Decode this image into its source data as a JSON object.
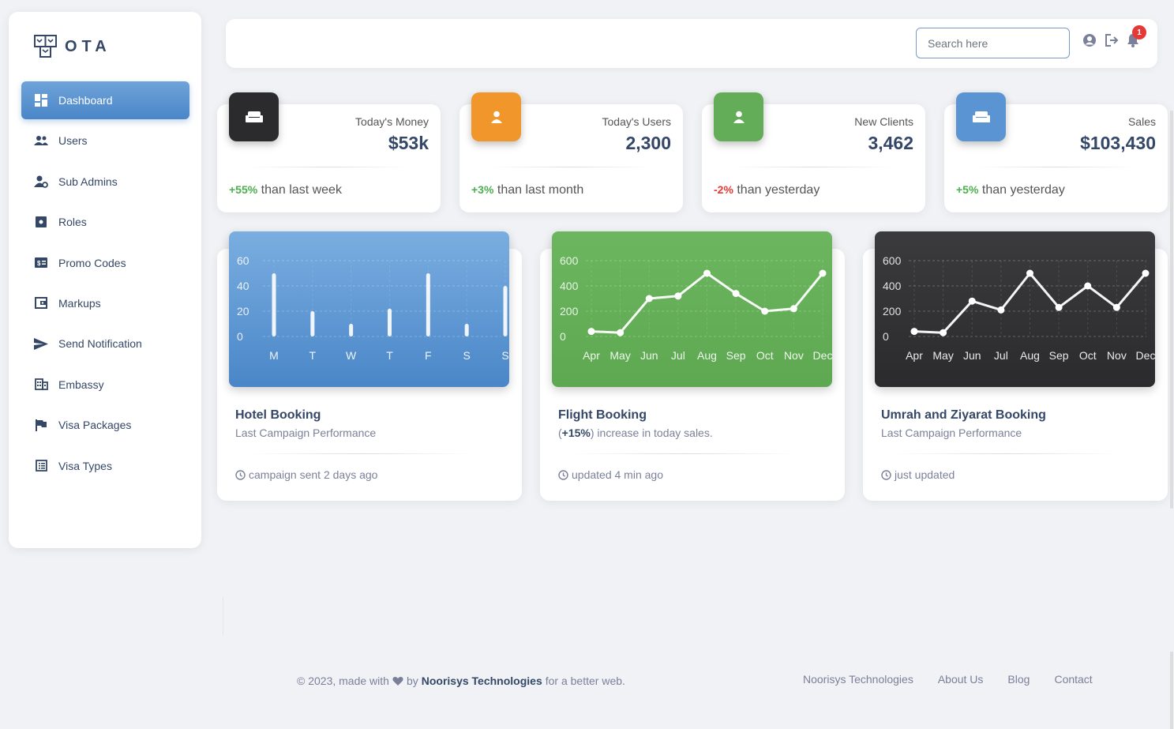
{
  "brand": {
    "name": "OTA"
  },
  "sidebar": {
    "items": [
      {
        "label": "Dashboard",
        "icon": "dashboard-icon",
        "active": true
      },
      {
        "label": "Users",
        "icon": "users-icon"
      },
      {
        "label": "Sub Admins",
        "icon": "sub-admins-icon"
      },
      {
        "label": "Roles",
        "icon": "roles-icon"
      },
      {
        "label": "Promo Codes",
        "icon": "promo-codes-icon"
      },
      {
        "label": "Markups",
        "icon": "markups-icon"
      },
      {
        "label": "Send Notification",
        "icon": "send-icon"
      },
      {
        "label": "Embassy",
        "icon": "embassy-icon"
      },
      {
        "label": "Visa Packages",
        "icon": "flag-icon"
      },
      {
        "label": "Visa Types",
        "icon": "list-icon"
      }
    ]
  },
  "topbar": {
    "search_placeholder": "Search here",
    "notification_count": "1",
    "icons": [
      "user-circle-icon",
      "logout-icon",
      "bell-icon"
    ]
  },
  "stats": [
    {
      "label": "Today's Money",
      "value": "$53k",
      "change": "+55%",
      "change_text": "than last week",
      "positive": true,
      "color": "#2b2b2d",
      "icon": "weekend-icon"
    },
    {
      "label": "Today's Users",
      "value": "2,300",
      "change": "+3%",
      "change_text": "than last month",
      "positive": true,
      "color": "#f0962a",
      "icon": "person-icon"
    },
    {
      "label": "New Clients",
      "value": "3,462",
      "change": "-2%",
      "change_text": "than yesterday",
      "positive": false,
      "color": "#64ad58",
      "icon": "person-icon"
    },
    {
      "label": "Sales",
      "value": "$103,430",
      "change": "+5%",
      "change_text": "than yesterday",
      "positive": true,
      "color": "#5a94d2",
      "icon": "weekend-icon"
    }
  ],
  "chart_data": [
    {
      "type": "bar",
      "title": "Hotel Booking",
      "subtitle": "Last Campaign Performance",
      "footer": "campaign sent 2 days ago",
      "categories": [
        "M",
        "T",
        "W",
        "T",
        "F",
        "S",
        "S"
      ],
      "values": [
        50,
        20,
        10,
        22,
        50,
        10,
        40
      ],
      "yticks": [
        "60",
        "40",
        "20",
        "0"
      ],
      "ylim": [
        0,
        60
      ],
      "grid": true,
      "background": "#5a94d2"
    },
    {
      "type": "line",
      "title": "Flight Booking",
      "subtitle_bold": "+15%",
      "subtitle_text": ") increase in today sales.",
      "footer": "updated 4 min ago",
      "categories": [
        "Apr",
        "May",
        "Jun",
        "Jul",
        "Aug",
        "Sep",
        "Oct",
        "Nov",
        "Dec"
      ],
      "values": [
        40,
        30,
        300,
        320,
        500,
        340,
        200,
        220,
        500
      ],
      "yticks": [
        "600",
        "400",
        "200",
        "0"
      ],
      "ylim": [
        0,
        600
      ],
      "grid": true,
      "background": "#64ad58"
    },
    {
      "type": "line",
      "title": "Umrah and Ziyarat Booking",
      "subtitle": "Last Campaign Performance",
      "footer": "just updated",
      "categories": [
        "Apr",
        "May",
        "Jun",
        "Jul",
        "Aug",
        "Sep",
        "Oct",
        "Nov",
        "Dec"
      ],
      "values": [
        40,
        30,
        280,
        210,
        500,
        230,
        400,
        230,
        500
      ],
      "yticks": [
        "600",
        "400",
        "200",
        "0"
      ],
      "ylim": [
        0,
        600
      ],
      "grid": true,
      "background": "#2b2b2d"
    }
  ],
  "footer": {
    "copyright": "© 2023, made with",
    "by": "by",
    "company": "Noorisys Technologies",
    "suffix": "for a better web.",
    "links": [
      "Noorisys Technologies",
      "About Us",
      "Blog",
      "Contact"
    ]
  }
}
